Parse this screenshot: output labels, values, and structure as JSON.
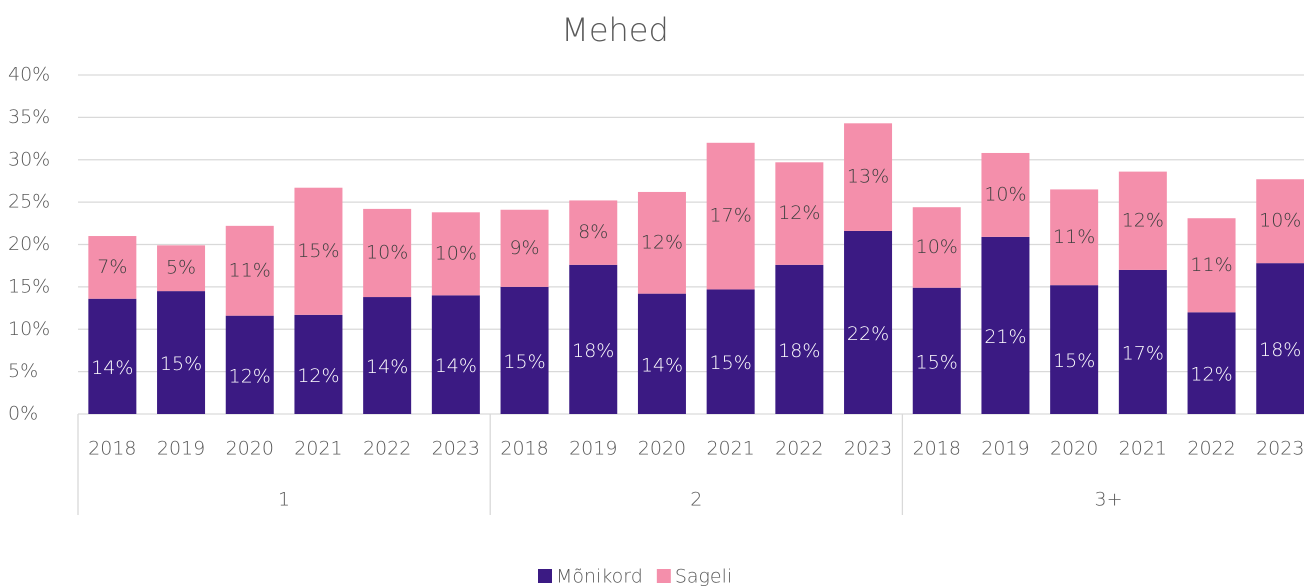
{
  "chart_data": {
    "type": "stacked_bar",
    "title": "Mehed",
    "categories": [
      "2018",
      "2019",
      "2020",
      "2021",
      "2022",
      "2023",
      "2018",
      "2019",
      "2020",
      "2021",
      "2022",
      "2023",
      "2018",
      "2019",
      "2020",
      "2021",
      "2022",
      "2023"
    ],
    "group_labels": [
      "1",
      "2",
      "3+"
    ],
    "series": [
      {
        "name": "Mõnikord",
        "color": "#3b1a83",
        "values": [
          13.6,
          14.5,
          11.6,
          11.7,
          13.8,
          14.0,
          15.0,
          17.6,
          14.2,
          14.7,
          17.6,
          21.6,
          14.9,
          20.9,
          15.2,
          17.0,
          12.0,
          17.8
        ],
        "value_labels": [
          "14%",
          "15%",
          "12%",
          "12%",
          "14%",
          "14%",
          "15%",
          "18%",
          "14%",
          "15%",
          "18%",
          "22%",
          "15%",
          "21%",
          "15%",
          "17%",
          "12%",
          "18%"
        ]
      },
      {
        "name": "Sageli",
        "color": "#f48fab",
        "values": [
          7.4,
          5.4,
          10.6,
          15.0,
          10.4,
          9.8,
          9.1,
          7.6,
          12.0,
          17.3,
          12.1,
          12.7,
          9.5,
          9.9,
          11.3,
          11.6,
          11.1,
          9.9
        ],
        "value_labels": [
          "7%",
          "5%",
          "11%",
          "15%",
          "10%",
          "10%",
          "9%",
          "8%",
          "12%",
          "17%",
          "12%",
          "13%",
          "10%",
          "10%",
          "11%",
          "12%",
          "11%",
          "10%"
        ]
      }
    ],
    "ylim": [
      0,
      40
    ],
    "yticks": [
      {
        "value": 0,
        "label": "0%"
      },
      {
        "value": 5,
        "label": "5%"
      },
      {
        "value": 10,
        "label": "10%"
      },
      {
        "value": 15,
        "label": "15%"
      },
      {
        "value": 20,
        "label": "20%"
      },
      {
        "value": 25,
        "label": "25%"
      },
      {
        "value": 30,
        "label": "30%"
      },
      {
        "value": 35,
        "label": "35%"
      },
      {
        "value": 40,
        "label": "40%"
      }
    ],
    "grid": true,
    "legend": "bottom"
  }
}
